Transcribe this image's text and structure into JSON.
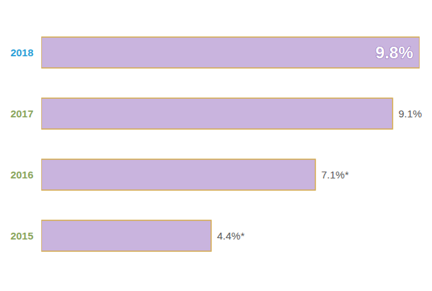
{
  "chart_data": {
    "type": "bar",
    "orientation": "horizontal",
    "categories": [
      "2018",
      "2017",
      "2016",
      "2015"
    ],
    "values": [
      9.8,
      9.1,
      7.1,
      4.4
    ],
    "value_labels": [
      "9.8%",
      "9.1%",
      "7.1%*",
      "4.4%*"
    ],
    "data_labels": true,
    "color": "#c9b4de",
    "xlim": [
      0,
      9.8
    ],
    "tick_labels": false,
    "grid": false
  }
}
